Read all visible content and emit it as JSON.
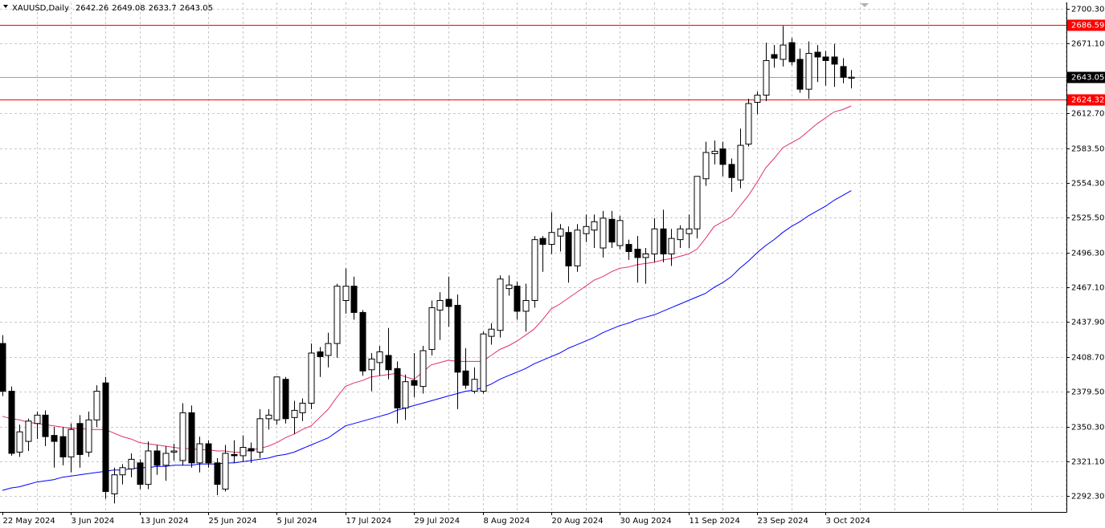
{
  "chart_data": {
    "type": "candlestick",
    "symbol": "XAUUSD,Daily",
    "categories": [
      "22 May 2024",
      null,
      null,
      null,
      null,
      null,
      null,
      null,
      "3 Jun 2024",
      null,
      null,
      null,
      null,
      null,
      null,
      null,
      "13 Jun 2024",
      null,
      null,
      null,
      null,
      null,
      null,
      null,
      "25 Jun 2024",
      null,
      null,
      null,
      null,
      null,
      null,
      null,
      "5 Jul 2024",
      null,
      null,
      null,
      null,
      null,
      null,
      null,
      "17 Jul 2024",
      null,
      null,
      null,
      null,
      null,
      null,
      null,
      "29 Jul 2024",
      null,
      null,
      null,
      null,
      null,
      null,
      null,
      "8 Aug 2024",
      null,
      null,
      null,
      null,
      null,
      null,
      null,
      "20 Aug 2024",
      null,
      null,
      null,
      null,
      null,
      null,
      null,
      "30 Aug 2024",
      null,
      null,
      null,
      null,
      null,
      null,
      null,
      "11 Sep 2024",
      null,
      null,
      null,
      null,
      null,
      null,
      null,
      "23 Sep 2024",
      null,
      null,
      null,
      null,
      null,
      null,
      null,
      "3 Oct 2024",
      null,
      null,
      null
    ],
    "open": [
      2420,
      2380,
      2329,
      2338,
      2353,
      2360,
      2343,
      2342,
      2325,
      2353,
      2329,
      2356,
      2387,
      2294,
      2310,
      2315,
      2320,
      2302,
      2330,
      2318,
      2329,
      2322,
      2362,
      2320,
      2336,
      2320,
      2298,
      2327,
      2326,
      2332,
      2329,
      2357,
      2356,
      2390,
      2358,
      2362,
      2370,
      2413,
      2410,
      2420,
      2456,
      2468,
      2446,
      2398,
      2404,
      2410,
      2399,
      2366,
      2389,
      2384,
      2415,
      2448,
      2457,
      2452,
      2397,
      2380,
      2380,
      2426,
      2431,
      2466,
      2468,
      2447,
      2456,
      2508,
      2503,
      2510,
      2513,
      2485,
      2512,
      2515,
      2500,
      2524,
      2502,
      2503,
      2499,
      2492,
      2495,
      2516,
      2495,
      2507,
      2512,
      2516,
      2558,
      2579,
      2583,
      2570,
      2557,
      2587,
      2622,
      2628,
      2662,
      2658,
      2672,
      2658,
      2633,
      2664,
      2660,
      2660,
      2652,
      2642.26
    ],
    "high": [
      2427,
      2384,
      2352,
      2357,
      2363,
      2364,
      2350,
      2350,
      2353,
      2360,
      2363,
      2385,
      2392,
      2316,
      2319,
      2328,
      2323,
      2338,
      2335,
      2334,
      2336,
      2370,
      2368,
      2342,
      2339,
      2324,
      2335,
      2339,
      2343,
      2337,
      2365,
      2365,
      2392,
      2392,
      2372,
      2374,
      2420,
      2417,
      2429,
      2470,
      2483,
      2476,
      2448,
      2412,
      2418,
      2433,
      2405,
      2394,
      2412,
      2418,
      2456,
      2463,
      2476,
      2461,
      2416,
      2400,
      2430,
      2437,
      2477,
      2477,
      2472,
      2470,
      2510,
      2510,
      2530,
      2520,
      2518,
      2520,
      2528,
      2528,
      2531,
      2531,
      2527,
      2507,
      2510,
      2500,
      2525,
      2532,
      2516,
      2519,
      2528,
      2560,
      2589,
      2590,
      2589,
      2575,
      2600,
      2625,
      2631,
      2672,
      2670,
      2686,
      2676,
      2667,
      2673,
      2670,
      2665,
      2671,
      2659,
      2649.08
    ],
    "low": [
      2376,
      2326,
      2325,
      2330,
      2340,
      2334,
      2316,
      2318,
      2312,
      2316,
      2325,
      2350,
      2290,
      2286,
      2302,
      2308,
      2298,
      2298,
      2310,
      2305,
      2322,
      2318,
      2316,
      2312,
      2316,
      2293,
      2296,
      2320,
      2321,
      2320,
      2324,
      2348,
      2352,
      2353,
      2344,
      2355,
      2365,
      2392,
      2400,
      2408,
      2445,
      2440,
      2393,
      2380,
      2393,
      2390,
      2353,
      2356,
      2375,
      2378,
      2410,
      2423,
      2434,
      2365,
      2382,
      2378,
      2378,
      2419,
      2425,
      2460,
      2440,
      2430,
      2450,
      2480,
      2495,
      2497,
      2471,
      2480,
      2505,
      2500,
      2492,
      2500,
      2499,
      2490,
      2471,
      2470,
      2488,
      2488,
      2485,
      2500,
      2500,
      2508,
      2552,
      2570,
      2560,
      2547,
      2550,
      2585,
      2612,
      2623,
      2651,
      2652,
      2653,
      2630,
      2625,
      2639,
      2636,
      2635,
      2638,
      2633.7
    ],
    "close": [
      2380,
      2328,
      2346,
      2355,
      2360,
      2342,
      2338,
      2325,
      2348,
      2327,
      2356,
      2380,
      2296,
      2310,
      2316,
      2323,
      2302,
      2330,
      2318,
      2328,
      2330,
      2362,
      2320,
      2336,
      2320,
      2302,
      2328,
      2326,
      2333,
      2330,
      2357,
      2360,
      2392,
      2357,
      2364,
      2370,
      2412,
      2409,
      2420,
      2468,
      2468,
      2446,
      2397,
      2407,
      2413,
      2398,
      2366,
      2388,
      2385,
      2414,
      2450,
      2456,
      2451,
      2396,
      2385,
      2390,
      2428,
      2432,
      2474,
      2469,
      2447,
      2456,
      2507,
      2503,
      2513,
      2516,
      2485,
      2515,
      2518,
      2522,
      2525,
      2505,
      2523,
      2497,
      2492,
      2495,
      2516,
      2495,
      2508,
      2516,
      2516,
      2560,
      2580,
      2581,
      2570,
      2559,
      2586,
      2621,
      2628,
      2657,
      2659,
      2670,
      2656,
      2633,
      2663,
      2660,
      2657,
      2654,
      2643,
      2643.05
    ],
    "lines": [
      {
        "color": "#e0306a",
        "values": [
          2359,
          2357,
          2356,
          2354,
          2353,
          2352,
          2351,
          2350,
          2349,
          2349,
          2348,
          2348,
          2348,
          2345,
          2342,
          2340,
          2337,
          2336,
          2335,
          2334,
          2333,
          2332,
          2332,
          2331,
          2331,
          2330,
          2330,
          2329,
          2329,
          2331,
          2332,
          2334,
          2337,
          2341,
          2344,
          2348,
          2351,
          2358,
          2365,
          2375,
          2384,
          2387,
          2389,
          2392,
          2393,
          2394,
          2395,
          2392,
          2390,
          2396,
          2402,
          2404,
          2406,
          2405,
          2405,
          2405,
          2405,
          2410,
          2415,
          2418,
          2422,
          2427,
          2432,
          2440,
          2449,
          2453,
          2458,
          2463,
          2468,
          2473,
          2476,
          2480,
          2483,
          2484,
          2486,
          2487,
          2488,
          2490,
          2491,
          2493,
          2495,
          2499,
          2508,
          2518,
          2522,
          2526,
          2535,
          2544,
          2555,
          2567,
          2575,
          2584,
          2588,
          2592,
          2598,
          2604,
          2609,
          2614,
          2616,
          2619
        ]
      },
      {
        "color": "#0000ff",
        "values": [
          2297,
          2299,
          2300,
          2302,
          2304,
          2305,
          2306,
          2308,
          2309,
          2310,
          2311,
          2312,
          2313,
          2314,
          2314,
          2315,
          2316,
          2316,
          2317,
          2317,
          2318,
          2318,
          2318,
          2319,
          2319,
          2319,
          2320,
          2320,
          2321,
          2322,
          2323,
          2324,
          2326,
          2327,
          2329,
          2332,
          2335,
          2338,
          2341,
          2346,
          2351,
          2353,
          2355,
          2357,
          2359,
          2361,
          2364,
          2366,
          2368,
          2370,
          2372,
          2374,
          2376,
          2378,
          2380,
          2381,
          2383,
          2386,
          2390,
          2393,
          2396,
          2399,
          2403,
          2406,
          2409,
          2412,
          2416,
          2419,
          2422,
          2425,
          2429,
          2432,
          2435,
          2437,
          2440,
          2442,
          2444,
          2447,
          2450,
          2453,
          2456,
          2459,
          2462,
          2467,
          2471,
          2476,
          2483,
          2489,
          2496,
          2502,
          2507,
          2513,
          2518,
          2522,
          2527,
          2531,
          2535,
          2540,
          2544,
          2548
        ]
      }
    ],
    "levels": [
      {
        "value": 2686.59,
        "color": "#ff0000"
      },
      {
        "value": 2624.32,
        "color": "#ff0000"
      }
    ],
    "ylim": [
      2278.9,
      2705.7
    ],
    "yticks": [
      {
        "value": 2700.3,
        "label": "2700.30"
      },
      {
        "value": 2671.1,
        "label": "2671.10"
      },
      {
        "value": 2612.7,
        "label": "2612.70"
      },
      {
        "value": 2583.5,
        "label": "2583.50"
      },
      {
        "value": 2554.3,
        "label": "2554.30"
      },
      {
        "value": 2525.5,
        "label": "2525.50"
      },
      {
        "value": 2496.3,
        "label": "2496.30"
      },
      {
        "value": 2467.1,
        "label": "2467.10"
      },
      {
        "value": 2437.9,
        "label": "2437.90"
      },
      {
        "value": 2408.7,
        "label": "2408.70"
      },
      {
        "value": 2379.5,
        "label": "2379.50"
      },
      {
        "value": 2350.3,
        "label": "2350.30"
      },
      {
        "value": 2321.1,
        "label": "2321.10"
      },
      {
        "value": 2292.3,
        "label": "2292.30"
      }
    ],
    "grid": true
  }
}
